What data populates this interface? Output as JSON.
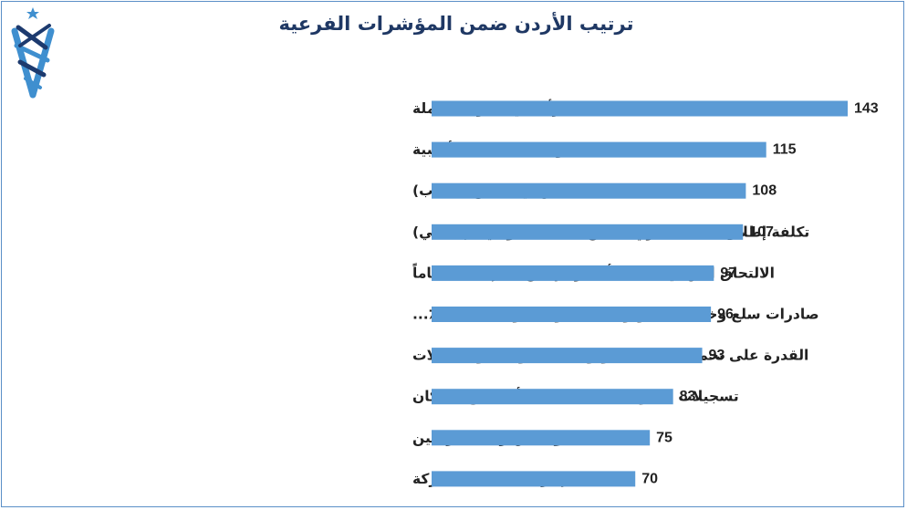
{
  "page": {
    "title": "ترتيب الأردن ضمن المؤشرات الفرعية",
    "logo_icon": "jordan-crown-logo",
    "colors": {
      "bar": "#5b9bd5",
      "title": "#1f3864",
      "frame": "#5b8fc7",
      "logo_blue": "#3f8fcf",
      "logo_navy": "#1d3a6e"
    }
  },
  "chart_data": {
    "type": "bar",
    "orientation": "horizontal",
    "title": "ترتيب الأردن ضمن المؤشرات الفرعية",
    "xlabel": "",
    "ylabel": "",
    "grid": false,
    "legend": "none",
    "xlim": [
      0,
      143
    ],
    "categories": [
      "المرأة في القوى العاملة",
      "توظيف العمالة الأجنبية",
      "الالتحاق المهني (٪ من الطلاب)",
      "تكلفة إطلاق نشاط تجاري (٪ من الدخل القومي الإجمالي)",
      "الالتحاق المهني للبالغة أعمارهم بين 15 إلى 24 عاماً",
      "صادرات سلع وخدمات تكنولوجيا المعلومات والاتصالات (٪...",
      "القدرة على تحمل تكاليف تكنولوجيا المعلومات والاتصالات",
      "تسجيلات الشركات الجديدة لكل ألف من السكان",
      "مجموعة مهارات الخريجين",
      "إجراءات تسجيل شركة"
    ],
    "values": [
      143,
      115,
      108,
      107,
      97,
      96,
      93,
      83,
      75,
      70
    ],
    "data_labels": [
      "143",
      "115",
      "108",
      "107",
      "97",
      "96",
      "93",
      "83",
      "75",
      "70"
    ]
  }
}
